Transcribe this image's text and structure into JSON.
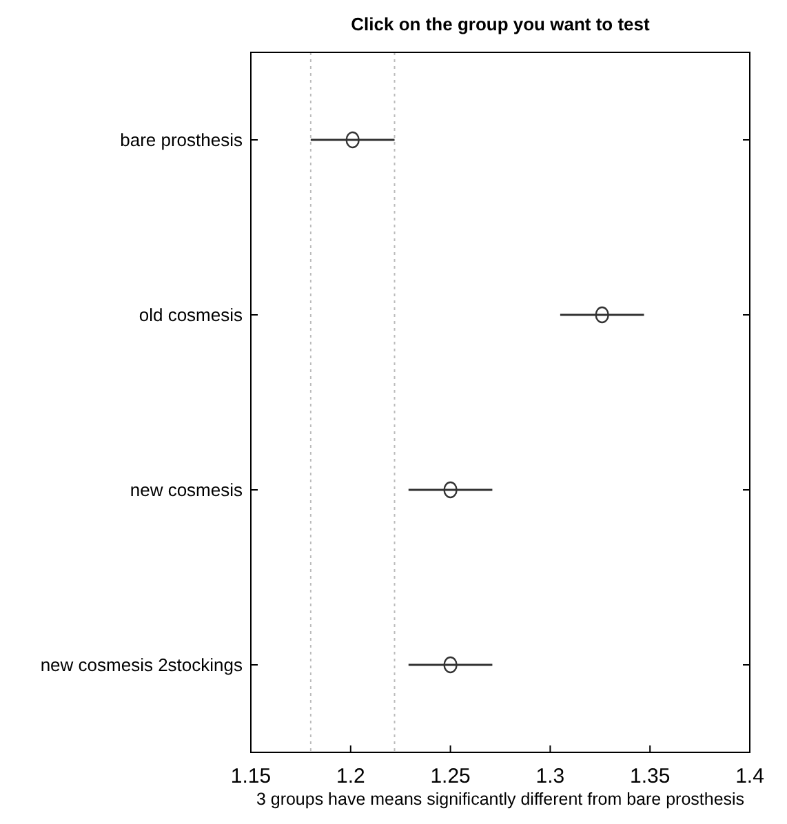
{
  "chart_data": {
    "type": "scatter",
    "orientation": "horizontal",
    "title": "Click on the group you want to test",
    "xlabel": "3 groups have means significantly different from bare prosthesis",
    "categories": [
      "bare prosthesis",
      "old cosmesis",
      "new cosmesis",
      "new cosmesis 2stockings"
    ],
    "series": [
      {
        "color": "#333333",
        "values": [
          1.201,
          1.326,
          1.25,
          1.25
        ],
        "errors": [
          0.021,
          0.021,
          0.021,
          0.021
        ]
      }
    ],
    "xlim": [
      1.15,
      1.4
    ],
    "xticks": [
      1.15,
      1.2,
      1.25,
      1.3,
      1.35,
      1.4
    ],
    "ref_lines": [
      {
        "axis": "x",
        "value": 1.18,
        "color": "#bbbbbb",
        "line_style": "dotted"
      },
      {
        "axis": "x",
        "value": 1.222,
        "color": "#bbbbbb",
        "line_style": "dotted"
      }
    ],
    "marker": "circle"
  }
}
